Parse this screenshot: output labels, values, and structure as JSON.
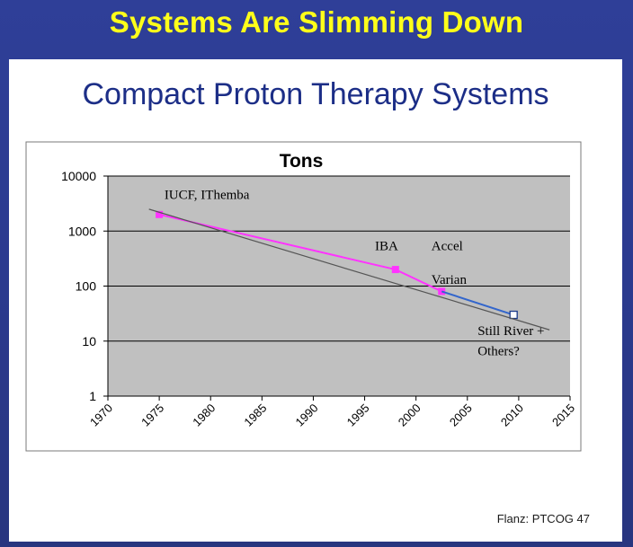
{
  "slide": {
    "title": "Systems Are Slimming Down",
    "panel_title": "Compact Proton Therapy Systems",
    "credit": "Flanz: PTCOG 47"
  },
  "colors": {
    "background": "#2f3f98",
    "slide_title": "#ffff1a",
    "panel_title": "#1c2e87",
    "plot_area": "#c0c0c0",
    "pink_series": "#ff33ff",
    "blue_series": "#3366cc",
    "trend": "#555555"
  },
  "chart_data": {
    "type": "line",
    "title": "Tons",
    "xlabel": "",
    "ylabel": "",
    "yscale": "log",
    "xlim": [
      1970,
      2015
    ],
    "ylim": [
      1,
      10000
    ],
    "grid": true,
    "x_ticks": [
      "1970",
      "1975",
      "1980",
      "1985",
      "1990",
      "1995",
      "2000",
      "2005",
      "2010",
      "2015"
    ],
    "y_ticks": [
      "1",
      "10",
      "100",
      "1000",
      "10000"
    ],
    "series": [
      {
        "points": [
          {
            "x": 1975,
            "y": 2000
          },
          {
            "x": 1998,
            "y": 200
          },
          {
            "x": 2002.5,
            "y": 80
          }
        ],
        "color": "#ff33ff",
        "marker": "square-filled"
      },
      {
        "points": [
          {
            "x": 2002.5,
            "y": 80
          },
          {
            "x": 2009.5,
            "y": 30
          }
        ],
        "color": "#3366cc",
        "marker": "square-open"
      },
      {
        "points": [
          {
            "x": 1974,
            "y": 2500
          },
          {
            "x": 2013,
            "y": 16
          }
        ],
        "color": "#555555",
        "marker": "none"
      }
    ],
    "annotations": [
      {
        "text": "IUCF, IThemba",
        "x": 1975.5,
        "y": 3800
      },
      {
        "text": "IBA",
        "x": 1996,
        "y": 450
      },
      {
        "text": "Accel",
        "x": 2001.5,
        "y": 450
      },
      {
        "text": "Varian",
        "x": 2001.5,
        "y": 110
      },
      {
        "text": "Still River +",
        "x": 2006,
        "y": 13
      },
      {
        "text": "Others?",
        "x": 2006,
        "y": 5.5
      }
    ]
  }
}
